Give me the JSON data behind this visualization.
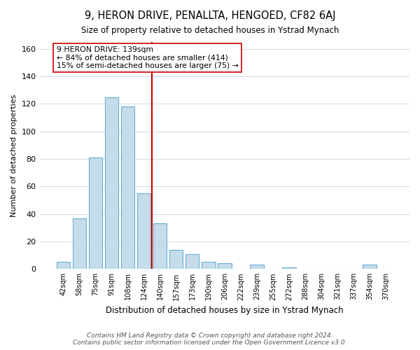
{
  "title": "9, HERON DRIVE, PENALLTA, HENGOED, CF82 6AJ",
  "subtitle": "Size of property relative to detached houses in Ystrad Mynach",
  "xlabel": "Distribution of detached houses by size in Ystrad Mynach",
  "ylabel": "Number of detached properties",
  "bar_labels": [
    "42sqm",
    "58sqm",
    "75sqm",
    "91sqm",
    "108sqm",
    "124sqm",
    "140sqm",
    "157sqm",
    "173sqm",
    "190sqm",
    "206sqm",
    "222sqm",
    "239sqm",
    "255sqm",
    "272sqm",
    "288sqm",
    "304sqm",
    "321sqm",
    "337sqm",
    "354sqm",
    "370sqm"
  ],
  "bar_values": [
    5,
    37,
    81,
    125,
    118,
    55,
    33,
    14,
    11,
    5,
    4,
    0,
    3,
    0,
    1,
    0,
    0,
    0,
    0,
    3,
    0
  ],
  "bar_color": "#c5dcea",
  "bar_edge_color": "#6aaed6",
  "vline_x": 5.5,
  "vline_color": "#cc0000",
  "annotation_line1": "9 HERON DRIVE: 139sqm",
  "annotation_line2": "← 84% of detached houses are smaller (414)",
  "annotation_line3": "15% of semi-detached houses are larger (75) →",
  "annotation_box_color": "#ffffff",
  "annotation_box_edge": "#cc0000",
  "ylim": [
    0,
    165
  ],
  "yticks": [
    0,
    20,
    40,
    60,
    80,
    100,
    120,
    140,
    160
  ],
  "footer": "Contains HM Land Registry data © Crown copyright and database right 2024.\nContains public sector information licensed under the Open Government Licence v3.0.",
  "bg_color": "#ffffff",
  "grid_color": "#d0d8e0"
}
